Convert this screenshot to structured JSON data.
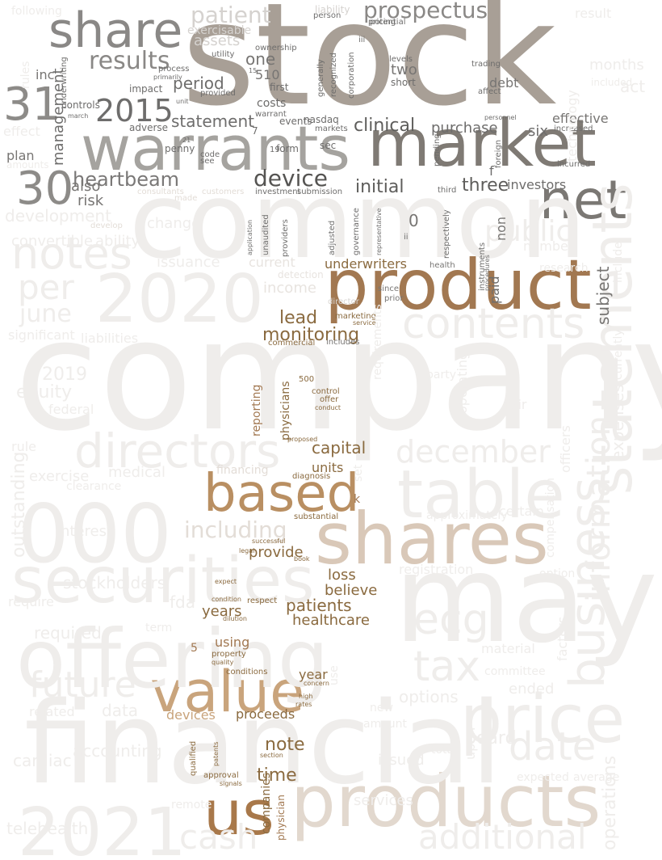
{
  "colors": {
    "background": "#ffffff",
    "faint": "#efedeb",
    "gray_dark": "#807a74",
    "gray_mid": "#9b958f",
    "brown_dark": "#8a6a3f",
    "brown_mid": "#a67d4f",
    "tan": "#c9a27c",
    "tan_light": "#d8c6b6"
  },
  "words": [
    {
      "text": "stock",
      "color": "#a89f96"
    },
    {
      "text": "market",
      "color": "#7f7a74"
    },
    {
      "text": "warrants",
      "color": "#a5a39f"
    },
    {
      "text": "share",
      "color": "#8a8886"
    },
    {
      "text": "net",
      "color": "#7b7874"
    },
    {
      "text": "30",
      "color": "#8d8b88"
    },
    {
      "text": "31",
      "color": "#8d8b88"
    },
    {
      "text": "2015",
      "color": "#6e6d6c"
    },
    {
      "text": "results",
      "color": "#8a8886"
    },
    {
      "text": "prospectus",
      "color": "#8a8886"
    },
    {
      "text": "patient",
      "color": "#d5d2cf"
    },
    {
      "text": "device",
      "color": "#555452"
    },
    {
      "text": "heartbeam",
      "color": "#7a7877"
    },
    {
      "text": "clinical",
      "color": "#5e5d5b"
    },
    {
      "text": "purchase",
      "color": "#6e6d6c"
    },
    {
      "text": "statement",
      "color": "#6e6d6c"
    },
    {
      "text": "period",
      "color": "#6e6d6c"
    },
    {
      "text": "management",
      "color": "#6e6d6c"
    },
    {
      "text": "initial",
      "color": "#5e5d5b"
    },
    {
      "text": "three",
      "color": "#5e5d5b"
    },
    {
      "text": "risk",
      "color": "#777573"
    },
    {
      "text": "also",
      "color": "#777573"
    },
    {
      "text": "one",
      "color": "#777573"
    },
    {
      "text": "two",
      "color": "#777573"
    },
    {
      "text": "six",
      "color": "#6e6d6c"
    },
    {
      "text": "product",
      "color": "#a27851"
    },
    {
      "text": "based",
      "color": "#b98f62"
    },
    {
      "text": "shares",
      "color": "#d9c8b8"
    },
    {
      "text": "value",
      "color": "#c9a47c"
    },
    {
      "text": "us",
      "color": "#a8784a"
    },
    {
      "text": "products",
      "color": "#e2d8ce"
    },
    {
      "text": "company",
      "color": "#efedeb"
    },
    {
      "text": "common",
      "color": "#efedeb"
    },
    {
      "text": "may",
      "color": "#efedeb"
    },
    {
      "text": "financial",
      "color": "#efedeb"
    },
    {
      "text": "offering",
      "color": "#efedeb"
    },
    {
      "text": "securities",
      "color": "#efedeb"
    },
    {
      "text": "000",
      "color": "#efedeb"
    },
    {
      "text": "2020",
      "color": "#efedeb"
    },
    {
      "text": "2021",
      "color": "#efedeb"
    },
    {
      "text": "table",
      "color": "#efedeb"
    },
    {
      "text": "directors",
      "color": "#efedeb"
    },
    {
      "text": "notes",
      "color": "#efedeb"
    },
    {
      "text": "statements",
      "color": "#efedeb"
    },
    {
      "text": "business",
      "color": "#efedeb"
    },
    {
      "text": "price",
      "color": "#efedeb"
    },
    {
      "text": "contents",
      "color": "#efedeb"
    },
    {
      "text": "december",
      "color": "#efedeb"
    },
    {
      "text": "information",
      "color": "#efedeb"
    },
    {
      "text": "tax",
      "color": "#efedeb"
    },
    {
      "text": "ecg",
      "color": "#efedeb"
    },
    {
      "text": "date",
      "color": "#efedeb"
    },
    {
      "text": "future",
      "color": "#efedeb"
    },
    {
      "text": "cash",
      "color": "#efedeb"
    },
    {
      "text": "additional",
      "color": "#efedeb"
    },
    {
      "text": "public",
      "color": "#efedeb"
    },
    {
      "text": "per",
      "color": "#efedeb"
    },
    {
      "text": "june",
      "color": "#efedeb"
    },
    {
      "text": "including",
      "color": "#e3ddd7"
    },
    {
      "text": "monitoring",
      "color": "#8a6a3f"
    },
    {
      "text": "lead",
      "color": "#8a6a3f"
    },
    {
      "text": "underwriters",
      "color": "#8a6a3f"
    },
    {
      "text": "capital",
      "color": "#8a6a3f"
    },
    {
      "text": "physicians",
      "color": "#8a6a3f"
    },
    {
      "text": "patients",
      "color": "#8a6a3f"
    },
    {
      "text": "healthcare",
      "color": "#8a6a3f"
    },
    {
      "text": "provide",
      "color": "#8a6a3f"
    },
    {
      "text": "loss",
      "color": "#8a6a3f"
    },
    {
      "text": "believe",
      "color": "#8a6a3f"
    },
    {
      "text": "years",
      "color": "#8a6a3f"
    },
    {
      "text": "units",
      "color": "#8a6a3f"
    },
    {
      "text": "note",
      "color": "#8a6a3f"
    },
    {
      "text": "time",
      "color": "#8a6a3f"
    },
    {
      "text": "proceeds",
      "color": "#8a6a3f"
    },
    {
      "text": "year",
      "color": "#8a6a3f"
    },
    {
      "text": "companies",
      "color": "#8a6a3f"
    },
    {
      "text": "physician",
      "color": "#a27851"
    },
    {
      "text": "devices",
      "color": "#c9a47c"
    },
    {
      "text": "using",
      "color": "#a27851"
    },
    {
      "text": "reporting",
      "color": "#a27851"
    },
    {
      "text": "subject",
      "color": "#777573"
    },
    {
      "text": "paid",
      "color": "#6e6d6c"
    },
    {
      "text": "non",
      "color": "#777573"
    },
    {
      "text": "investors",
      "color": "#6e6d6c"
    },
    {
      "text": "effective",
      "color": "#777573"
    },
    {
      "text": "debt",
      "color": "#777573"
    },
    {
      "text": "f",
      "color": "#6e6d6c"
    },
    {
      "text": "0",
      "color": "#777573"
    },
    {
      "text": "k",
      "color": "#a27851"
    },
    {
      "text": "5",
      "color": "#a27851"
    },
    {
      "text": "costs",
      "color": "#6e6d6c"
    },
    {
      "text": "510",
      "color": "#777573"
    },
    {
      "text": "inc",
      "color": "#777573"
    },
    {
      "text": "plan",
      "color": "#777573"
    },
    {
      "text": "marketing",
      "color": "#8a6a3f"
    },
    {
      "text": "commercial",
      "color": "#8a6a3f"
    },
    {
      "text": "control",
      "color": "#8a6a3f"
    },
    {
      "text": "offer",
      "color": "#8a6a3f"
    },
    {
      "text": "conduct",
      "color": "#8a6a3f"
    },
    {
      "text": "500",
      "color": "#8a6a3f"
    },
    {
      "text": "diagnosis",
      "color": "#8a6a3f"
    },
    {
      "text": "substantial",
      "color": "#8a6a3f"
    },
    {
      "text": "proposed",
      "color": "#8a6a3f"
    },
    {
      "text": "section",
      "color": "#8a6a3f"
    },
    {
      "text": "approval",
      "color": "#8a6a3f"
    },
    {
      "text": "signals",
      "color": "#8a6a3f"
    },
    {
      "text": "high",
      "color": "#8a6a3f"
    },
    {
      "text": "rates",
      "color": "#8a6a3f"
    },
    {
      "text": "concern",
      "color": "#8a6a3f"
    },
    {
      "text": "conditions",
      "color": "#8a6a3f"
    },
    {
      "text": "condition",
      "color": "#8a6a3f"
    },
    {
      "text": "respect",
      "color": "#8a6a3f"
    },
    {
      "text": "dilution",
      "color": "#8a6a3f"
    },
    {
      "text": "property",
      "color": "#8a6a3f"
    },
    {
      "text": "quality",
      "color": "#8a6a3f"
    },
    {
      "text": "expect",
      "color": "#8a6a3f"
    },
    {
      "text": "successful",
      "color": "#8a6a3f"
    },
    {
      "text": "legal",
      "color": "#8a6a3f"
    },
    {
      "text": "book",
      "color": "#8a6a3f"
    },
    {
      "text": "qualified",
      "color": "#8a6a3f"
    },
    {
      "text": "patents",
      "color": "#8a6a3f"
    },
    {
      "text": "service",
      "color": "#8a6a3f"
    },
    {
      "text": "since",
      "color": "#777573"
    },
    {
      "text": "prior",
      "color": "#777573"
    },
    {
      "text": "includes",
      "color": "#777573"
    },
    {
      "text": "health",
      "color": "#777573"
    },
    {
      "text": "director",
      "color": "#d8d5d2"
    },
    {
      "text": "income",
      "color": "#e8e4e0"
    },
    {
      "text": "current",
      "color": "#e8e4e0"
    },
    {
      "text": "detection",
      "color": "#e8e4e0"
    },
    {
      "text": "financing",
      "color": "#e3ddd7"
    },
    {
      "text": "assets",
      "color": "#d5d2cf"
    },
    {
      "text": "liability",
      "color": "#d5d2cf"
    },
    {
      "text": "exercisable",
      "color": "#d5d2cf"
    },
    {
      "text": "ownership",
      "color": "#6e6d6c"
    },
    {
      "text": "utility",
      "color": "#6e6d6c"
    },
    {
      "text": "process",
      "color": "#6e6d6c"
    },
    {
      "text": "primarily",
      "color": "#6e6d6c"
    },
    {
      "text": "impact",
      "color": "#6e6d6c"
    },
    {
      "text": "controls",
      "color": "#6e6d6c"
    },
    {
      "text": "adverse",
      "color": "#6e6d6c"
    },
    {
      "text": "warrant",
      "color": "#6e6d6c"
    },
    {
      "text": "events",
      "color": "#6e6d6c"
    },
    {
      "text": "nasdaq",
      "color": "#6e6d6c"
    },
    {
      "text": "form",
      "color": "#6e6d6c"
    },
    {
      "text": "markets",
      "color": "#6e6d6c"
    },
    {
      "text": "first",
      "color": "#6e6d6c"
    },
    {
      "text": "sec",
      "color": "#6e6d6c"
    },
    {
      "text": "penny",
      "color": "#6e6d6c"
    },
    {
      "text": "code",
      "color": "#6e6d6c"
    },
    {
      "text": "see",
      "color": "#6e6d6c"
    },
    {
      "text": "unit",
      "color": "#6e6d6c"
    },
    {
      "text": "provided",
      "color": "#6e6d6c"
    },
    {
      "text": "underwriting",
      "color": "#6e6d6c"
    },
    {
      "text": "march",
      "color": "#6e6d6c"
    },
    {
      "text": "investment",
      "color": "#6e6d6c"
    },
    {
      "text": "submission",
      "color": "#6e6d6c"
    },
    {
      "text": "providers",
      "color": "#6e6d6c"
    },
    {
      "text": "unaudited",
      "color": "#6e6d6c"
    },
    {
      "text": "application",
      "color": "#6e6d6c"
    },
    {
      "text": "governance",
      "color": "#6e6d6c"
    },
    {
      "text": "adjusted",
      "color": "#6e6d6c"
    },
    {
      "text": "representative",
      "color": "#6e6d6c"
    },
    {
      "text": "respectively",
      "color": "#6e6d6c"
    },
    {
      "text": "generally",
      "color": "#6e6d6c"
    },
    {
      "text": "recognized",
      "color": "#6e6d6c"
    },
    {
      "text": "corporation",
      "color": "#6e6d6c"
    },
    {
      "text": "short",
      "color": "#6e6d6c"
    },
    {
      "text": "levels",
      "color": "#6e6d6c"
    },
    {
      "text": "trading",
      "color": "#6e6d6c"
    },
    {
      "text": "affect",
      "color": "#6e6d6c"
    },
    {
      "text": "pricing",
      "color": "#6e6d6c"
    },
    {
      "text": "personnel",
      "color": "#6e6d6c"
    },
    {
      "text": "increased",
      "color": "#6e6d6c"
    },
    {
      "text": "incurred",
      "color": "#6e6d6c"
    },
    {
      "text": "pending",
      "color": "#6e6d6c"
    },
    {
      "text": "foreign",
      "color": "#6e6d6c"
    },
    {
      "text": "third",
      "color": "#6e6d6c"
    },
    {
      "text": "instruments",
      "color": "#6e6d6c"
    },
    {
      "text": "procedures",
      "color": "#6e6d6c"
    },
    {
      "text": "ii",
      "color": "#6e6d6c"
    },
    {
      "text": "iii",
      "color": "#6e6d6c"
    },
    {
      "text": "potential",
      "color": "#6e6d6c"
    },
    {
      "text": "person",
      "color": "#6e6d6c"
    },
    {
      "text": "15",
      "color": "#6e6d6c"
    },
    {
      "text": "19",
      "color": "#6e6d6c"
    },
    {
      "text": "21",
      "color": "#6e6d6c"
    },
    {
      "text": "7",
      "color": "#6e6d6c"
    },
    {
      "text": "consultants",
      "color": "#e3ddd7"
    },
    {
      "text": "customers",
      "color": "#e3ddd7"
    },
    {
      "text": "develop",
      "color": "#e3ddd7"
    },
    {
      "text": "made",
      "color": "#e3ddd7"
    },
    {
      "text": "development",
      "color": "#efedeb"
    },
    {
      "text": "change",
      "color": "#efedeb"
    },
    {
      "text": "number",
      "color": "#efedeb"
    },
    {
      "text": "include",
      "color": "#efedeb"
    },
    {
      "text": "currently",
      "color": "#efedeb"
    },
    {
      "text": "convertible",
      "color": "#efedeb"
    },
    {
      "text": "ability",
      "color": "#efedeb"
    },
    {
      "text": "issuance",
      "color": "#efedeb"
    },
    {
      "text": "medical",
      "color": "#efedeb"
    },
    {
      "text": "exercise",
      "color": "#efedeb"
    },
    {
      "text": "equity",
      "color": "#efedeb"
    },
    {
      "text": "2019",
      "color": "#efedeb"
    },
    {
      "text": "liabilities",
      "color": "#efedeb"
    },
    {
      "text": "significant",
      "color": "#efedeb"
    },
    {
      "text": "federal",
      "color": "#efedeb"
    },
    {
      "text": "outstanding",
      "color": "#efedeb"
    },
    {
      "text": "interest",
      "color": "#efedeb"
    },
    {
      "text": "stockholders",
      "color": "#efedeb"
    },
    {
      "text": "require",
      "color": "#efedeb"
    },
    {
      "text": "required",
      "color": "#efedeb"
    },
    {
      "text": "related",
      "color": "#efedeb"
    },
    {
      "text": "data",
      "color": "#efedeb"
    },
    {
      "text": "accounting",
      "color": "#efedeb"
    },
    {
      "text": "cardiac",
      "color": "#efedeb"
    },
    {
      "text": "telehealth",
      "color": "#efedeb"
    },
    {
      "text": "fda",
      "color": "#efedeb"
    },
    {
      "text": "board",
      "color": "#efedeb"
    },
    {
      "text": "expenses",
      "color": "#efedeb"
    },
    {
      "text": "operations",
      "color": "#efedeb"
    },
    {
      "text": "services",
      "color": "#efedeb"
    },
    {
      "text": "issued",
      "color": "#efedeb"
    },
    {
      "text": "options",
      "color": "#efedeb"
    },
    {
      "text": "ended",
      "color": "#efedeb"
    },
    {
      "text": "committee",
      "color": "#efedeb"
    },
    {
      "text": "upon",
      "color": "#efedeb"
    },
    {
      "text": "registration",
      "color": "#efedeb"
    },
    {
      "text": "approximately",
      "color": "#efedeb"
    },
    {
      "text": "certain",
      "color": "#efedeb"
    },
    {
      "text": "requirements",
      "color": "#efedeb"
    },
    {
      "text": "compensation",
      "color": "#efedeb"
    },
    {
      "text": "officers",
      "color": "#efedeb"
    },
    {
      "text": "fair",
      "color": "#efedeb"
    },
    {
      "text": "total",
      "color": "#efedeb"
    },
    {
      "text": "expected",
      "color": "#efedeb"
    },
    {
      "text": "average",
      "color": "#efedeb"
    },
    {
      "text": "remote",
      "color": "#efedeb"
    },
    {
      "text": "material",
      "color": "#efedeb"
    },
    {
      "text": "factors",
      "color": "#efedeb"
    },
    {
      "text": "term",
      "color": "#efedeb"
    },
    {
      "text": "amounts",
      "color": "#efedeb"
    },
    {
      "text": "clearance",
      "color": "#efedeb"
    },
    {
      "text": "rule",
      "color": "#efedeb"
    },
    {
      "text": "research",
      "color": "#efedeb"
    },
    {
      "text": "option",
      "color": "#efedeb"
    },
    {
      "text": "new",
      "color": "#efedeb"
    },
    {
      "text": "amount",
      "color": "#efedeb"
    },
    {
      "text": "use",
      "color": "#efedeb"
    },
    {
      "text": "set",
      "color": "#efedeb"
    },
    {
      "text": "party",
      "color": "#efedeb"
    },
    {
      "text": "operating",
      "color": "#efedeb"
    },
    {
      "text": "months",
      "color": "#efedeb"
    },
    {
      "text": "result",
      "color": "#efedeb"
    },
    {
      "text": "included",
      "color": "#efedeb"
    },
    {
      "text": "act",
      "color": "#efedeb"
    },
    {
      "text": "technology",
      "color": "#efedeb"
    },
    {
      "text": "effect",
      "color": "#efedeb"
    },
    {
      "text": "following",
      "color": "#efedeb"
    },
    {
      "text": "rules",
      "color": "#efedeb"
    }
  ]
}
